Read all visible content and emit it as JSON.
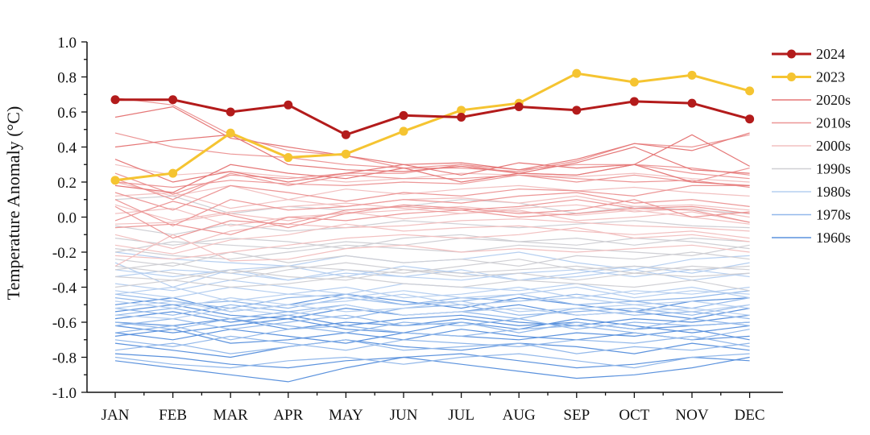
{
  "chart_data": {
    "type": "line",
    "title": "",
    "xlabel": "",
    "ylabel": "Temperature Anomaly (°C)",
    "ylim": [
      -1.0,
      1.0
    ],
    "yticks": [
      "1.0",
      "0.8",
      "0.6",
      "0.4",
      "0.2",
      "0.0",
      "-0.2",
      "-0.4",
      "-0.6",
      "-0.8",
      "-1.0"
    ],
    "categories": [
      "JAN",
      "FEB",
      "MAR",
      "APR",
      "MAY",
      "JUN",
      "JUL",
      "AUG",
      "SEP",
      "OCT",
      "NOV",
      "DEC"
    ],
    "grid": false,
    "legend_position": "right",
    "series": [
      {
        "name": "2024",
        "color": "#b31b1b",
        "highlight": true,
        "values": [
          0.67,
          0.67,
          0.6,
          0.64,
          0.47,
          0.58,
          0.57,
          0.63,
          0.61,
          0.66,
          0.65,
          0.56
        ]
      },
      {
        "name": "2023",
        "color": "#f5c431",
        "highlight": true,
        "values": [
          0.21,
          0.25,
          0.48,
          0.34,
          0.36,
          0.49,
          0.61,
          0.65,
          0.82,
          0.77,
          0.81,
          0.72
        ]
      }
    ],
    "decades": [
      {
        "name": "2020s",
        "color": "#e57777",
        "lines": [
          [
            0.57,
            0.63,
            0.45,
            0.4,
            0.35,
            0.3,
            0.31,
            0.27,
            0.33,
            0.42,
            0.38,
            0.48
          ],
          [
            0.4,
            0.44,
            0.47,
            0.3,
            0.27,
            0.26,
            0.29,
            0.25,
            0.31,
            0.4,
            0.27,
            0.25
          ],
          [
            0.33,
            0.2,
            0.26,
            0.2,
            0.25,
            0.3,
            0.24,
            0.31,
            0.28,
            0.3,
            0.47,
            0.29
          ],
          [
            0.18,
            0.14,
            0.3,
            0.25,
            0.22,
            0.28,
            0.2,
            0.25,
            0.24,
            0.3,
            0.2,
            0.18
          ]
        ]
      },
      {
        "name": "2010s",
        "color": "#ec9696",
        "lines": [
          [
            0.68,
            0.64,
            0.47,
            0.38,
            0.35,
            0.28,
            0.28,
            0.26,
            0.32,
            0.42,
            0.4,
            0.47
          ],
          [
            0.48,
            0.4,
            0.36,
            0.34,
            0.3,
            0.28,
            0.3,
            0.25,
            0.24,
            0.3,
            0.28,
            0.24
          ],
          [
            0.25,
            0.13,
            0.24,
            0.22,
            0.25,
            0.25,
            0.3,
            0.27,
            0.3,
            0.3,
            0.25,
            0.22
          ],
          [
            0.22,
            0.1,
            0.25,
            0.18,
            0.24,
            0.22,
            0.22,
            0.24,
            0.2,
            0.24,
            0.2,
            0.28
          ],
          [
            0.2,
            0.17,
            0.21,
            0.19,
            0.18,
            0.2,
            0.19,
            0.24,
            0.22,
            0.2,
            0.21,
            0.17
          ],
          [
            0.14,
            0.04,
            0.18,
            0.14,
            0.09,
            0.14,
            0.12,
            0.16,
            0.15,
            0.12,
            0.18,
            0.18
          ],
          [
            0.1,
            -0.05,
            0.1,
            0.04,
            0.06,
            0.1,
            0.08,
            0.12,
            0.14,
            0.08,
            0.1,
            0.06
          ],
          [
            0.06,
            -0.12,
            -0.02,
            -0.04,
            0.04,
            0.06,
            0.04,
            0.06,
            0.1,
            0.05,
            0.06,
            0.02
          ],
          [
            -0.02,
            0.09,
            0.01,
            -0.06,
            0.02,
            0.07,
            0.05,
            0.02,
            0.04,
            0.1,
            0.0,
            0.03
          ],
          [
            -0.06,
            -0.04,
            -0.1,
            0.0,
            -0.02,
            0.02,
            0.04,
            0.0,
            0.02,
            0.05,
            0.04,
            -0.03
          ]
        ]
      },
      {
        "name": "2000s",
        "color": "#f2c0c0",
        "lines": [
          [
            0.3,
            0.24,
            0.26,
            0.23,
            0.2,
            0.22,
            0.25,
            0.24,
            0.23,
            0.25,
            0.22,
            0.2
          ],
          [
            0.2,
            0.12,
            0.18,
            0.1,
            0.16,
            0.13,
            0.16,
            0.18,
            0.15,
            0.17,
            0.14,
            0.12
          ],
          [
            0.12,
            0.14,
            0.05,
            0.1,
            0.06,
            0.1,
            0.11,
            0.08,
            0.12,
            0.06,
            0.07,
            0.04
          ],
          [
            0.07,
            -0.02,
            0.03,
            0.06,
            0.08,
            0.05,
            0.02,
            0.05,
            0.07,
            0.03,
            0.05,
            0.0
          ],
          [
            0.02,
            0.05,
            -0.05,
            0.0,
            0.02,
            0.04,
            0.06,
            0.03,
            0.01,
            0.04,
            0.0,
            -0.04
          ],
          [
            -0.04,
            -0.03,
            0.02,
            -0.02,
            0.03,
            -0.01,
            0.02,
            0.04,
            -0.02,
            0.0,
            0.03,
            -0.03
          ],
          [
            -0.1,
            -0.18,
            -0.08,
            -0.04,
            -0.06,
            -0.05,
            -0.02,
            -0.01,
            -0.03,
            -0.05,
            -0.06,
            -0.08
          ],
          [
            -0.16,
            -0.21,
            -0.13,
            -0.1,
            -0.04,
            -0.08,
            -0.06,
            -0.05,
            -0.08,
            -0.1,
            -0.08,
            -0.12
          ],
          [
            -0.22,
            -0.24,
            -0.2,
            -0.16,
            -0.12,
            -0.1,
            -0.12,
            -0.1,
            -0.06,
            -0.12,
            -0.1,
            -0.14
          ],
          [
            -0.28,
            -0.1,
            -0.25,
            -0.24,
            -0.18,
            -0.16,
            -0.2,
            -0.18,
            -0.2,
            -0.18,
            -0.16,
            -0.2
          ]
        ]
      },
      {
        "name": "1990s",
        "color": "#cfcfd4",
        "lines": [
          [
            0.1,
            0.12,
            0.02,
            0.06,
            0.04,
            0.06,
            0.1,
            0.08,
            0.02,
            0.06,
            0.04,
            0.02
          ],
          [
            -0.05,
            -0.1,
            -0.04,
            -0.08,
            -0.06,
            -0.02,
            -0.04,
            -0.06,
            -0.04,
            -0.02,
            -0.05,
            -0.06
          ],
          [
            -0.12,
            -0.16,
            -0.12,
            -0.14,
            -0.18,
            -0.12,
            -0.1,
            -0.14,
            -0.12,
            -0.16,
            -0.12,
            -0.14
          ],
          [
            -0.18,
            -0.22,
            -0.24,
            -0.2,
            -0.16,
            -0.18,
            -0.2,
            -0.16,
            -0.18,
            -0.2,
            -0.22,
            -0.16
          ],
          [
            -0.24,
            -0.28,
            -0.2,
            -0.26,
            -0.22,
            -0.26,
            -0.24,
            -0.28,
            -0.22,
            -0.24,
            -0.2,
            -0.24
          ],
          [
            -0.3,
            -0.26,
            -0.32,
            -0.28,
            -0.3,
            -0.32,
            -0.28,
            -0.24,
            -0.3,
            -0.28,
            -0.3,
            -0.28
          ],
          [
            -0.34,
            -0.36,
            -0.3,
            -0.34,
            -0.36,
            -0.3,
            -0.34,
            -0.32,
            -0.36,
            -0.32,
            -0.34,
            -0.32
          ],
          [
            -0.4,
            -0.36,
            -0.4,
            -0.38,
            -0.34,
            -0.38,
            -0.4,
            -0.36,
            -0.38,
            -0.4,
            -0.36,
            -0.42
          ],
          [
            -0.2,
            -0.14,
            -0.16,
            -0.18,
            -0.14,
            -0.16,
            -0.12,
            -0.14,
            -0.16,
            -0.12,
            -0.14,
            -0.18
          ],
          [
            -0.28,
            -0.32,
            -0.36,
            -0.3,
            -0.26,
            -0.3,
            -0.32,
            -0.3,
            -0.28,
            -0.32,
            -0.28,
            -0.3
          ]
        ]
      },
      {
        "name": "1980s",
        "color": "#b6cff0",
        "lines": [
          [
            -0.2,
            -0.24,
            -0.26,
            -0.28,
            -0.22,
            -0.26,
            -0.24,
            -0.2,
            -0.26,
            -0.3,
            -0.24,
            -0.22
          ],
          [
            -0.3,
            -0.34,
            -0.3,
            -0.36,
            -0.32,
            -0.34,
            -0.3,
            -0.36,
            -0.34,
            -0.3,
            -0.36,
            -0.32
          ],
          [
            -0.38,
            -0.42,
            -0.36,
            -0.4,
            -0.44,
            -0.38,
            -0.4,
            -0.42,
            -0.38,
            -0.44,
            -0.4,
            -0.46
          ],
          [
            -0.44,
            -0.4,
            -0.48,
            -0.44,
            -0.4,
            -0.46,
            -0.44,
            -0.4,
            -0.46,
            -0.42,
            -0.44,
            -0.4
          ],
          [
            -0.48,
            -0.52,
            -0.46,
            -0.5,
            -0.48,
            -0.44,
            -0.5,
            -0.48,
            -0.46,
            -0.5,
            -0.48,
            -0.52
          ],
          [
            -0.52,
            -0.48,
            -0.54,
            -0.5,
            -0.54,
            -0.52,
            -0.48,
            -0.54,
            -0.52,
            -0.5,
            -0.54,
            -0.5
          ],
          [
            -0.34,
            -0.3,
            -0.32,
            -0.36,
            -0.3,
            -0.34,
            -0.36,
            -0.32,
            -0.3,
            -0.34,
            -0.3,
            -0.34
          ],
          [
            -0.26,
            -0.4,
            -0.3,
            -0.28,
            -0.34,
            -0.28,
            -0.32,
            -0.36,
            -0.32,
            -0.28,
            -0.32,
            -0.26
          ],
          [
            -0.42,
            -0.46,
            -0.4,
            -0.44,
            -0.46,
            -0.42,
            -0.46,
            -0.44,
            -0.4,
            -0.46,
            -0.42,
            -0.44
          ],
          [
            -0.56,
            -0.58,
            -0.52,
            -0.56,
            -0.5,
            -0.56,
            -0.54,
            -0.52,
            -0.56,
            -0.54,
            -0.52,
            -0.56
          ]
        ]
      },
      {
        "name": "1970s",
        "color": "#92b8ea",
        "lines": [
          [
            -0.46,
            -0.5,
            -0.48,
            -0.52,
            -0.46,
            -0.5,
            -0.48,
            -0.44,
            -0.5,
            -0.48,
            -0.52,
            -0.46
          ],
          [
            -0.56,
            -0.52,
            -0.58,
            -0.54,
            -0.5,
            -0.56,
            -0.54,
            -0.58,
            -0.52,
            -0.56,
            -0.54,
            -0.58
          ],
          [
            -0.6,
            -0.64,
            -0.58,
            -0.62,
            -0.66,
            -0.6,
            -0.62,
            -0.58,
            -0.64,
            -0.6,
            -0.62,
            -0.6
          ],
          [
            -0.66,
            -0.62,
            -0.7,
            -0.64,
            -0.62,
            -0.66,
            -0.68,
            -0.64,
            -0.62,
            -0.66,
            -0.7,
            -0.64
          ],
          [
            -0.7,
            -0.74,
            -0.68,
            -0.72,
            -0.76,
            -0.7,
            -0.72,
            -0.74,
            -0.7,
            -0.72,
            -0.68,
            -0.74
          ],
          [
            -0.52,
            -0.56,
            -0.5,
            -0.54,
            -0.58,
            -0.52,
            -0.5,
            -0.56,
            -0.54,
            -0.52,
            -0.56,
            -0.5
          ],
          [
            -0.62,
            -0.58,
            -0.64,
            -0.6,
            -0.56,
            -0.62,
            -0.6,
            -0.66,
            -0.6,
            -0.64,
            -0.58,
            -0.62
          ],
          [
            -0.76,
            -0.72,
            -0.78,
            -0.74,
            -0.7,
            -0.76,
            -0.74,
            -0.72,
            -0.78,
            -0.74,
            -0.76,
            -0.72
          ],
          [
            -0.8,
            -0.84,
            -0.86,
            -0.82,
            -0.8,
            -0.84,
            -0.8,
            -0.78,
            -0.82,
            -0.86,
            -0.8,
            -0.78
          ],
          [
            -0.44,
            -0.48,
            -0.52,
            -0.46,
            -0.44,
            -0.5,
            -0.46,
            -0.48,
            -0.44,
            -0.48,
            -0.46,
            -0.42
          ]
        ]
      },
      {
        "name": "1960s",
        "color": "#5b92dd",
        "lines": [
          [
            -0.54,
            -0.5,
            -0.56,
            -0.58,
            -0.52,
            -0.56,
            -0.54,
            -0.5,
            -0.56,
            -0.54,
            -0.58,
            -0.52
          ],
          [
            -0.6,
            -0.62,
            -0.58,
            -0.64,
            -0.6,
            -0.62,
            -0.58,
            -0.62,
            -0.6,
            -0.64,
            -0.62,
            -0.6
          ],
          [
            -0.66,
            -0.7,
            -0.64,
            -0.68,
            -0.72,
            -0.66,
            -0.68,
            -0.7,
            -0.66,
            -0.68,
            -0.64,
            -0.7
          ],
          [
            -0.72,
            -0.76,
            -0.8,
            -0.74,
            -0.7,
            -0.74,
            -0.76,
            -0.72,
            -0.74,
            -0.78,
            -0.72,
            -0.76
          ],
          [
            -0.78,
            -0.8,
            -0.84,
            -0.86,
            -0.82,
            -0.8,
            -0.78,
            -0.82,
            -0.86,
            -0.84,
            -0.8,
            -0.82
          ],
          [
            -0.82,
            -0.86,
            -0.9,
            -0.94,
            -0.86,
            -0.8,
            -0.84,
            -0.88,
            -0.92,
            -0.9,
            -0.86,
            -0.8
          ],
          [
            -0.5,
            -0.46,
            -0.54,
            -0.5,
            -0.44,
            -0.48,
            -0.52,
            -0.46,
            -0.5,
            -0.54,
            -0.48,
            -0.46
          ],
          [
            -0.58,
            -0.54,
            -0.6,
            -0.56,
            -0.62,
            -0.58,
            -0.56,
            -0.6,
            -0.62,
            -0.58,
            -0.6,
            -0.56
          ],
          [
            -0.68,
            -0.64,
            -0.72,
            -0.7,
            -0.66,
            -0.7,
            -0.64,
            -0.68,
            -0.7,
            -0.66,
            -0.7,
            -0.68
          ],
          [
            -0.62,
            -0.66,
            -0.62,
            -0.58,
            -0.64,
            -0.66,
            -0.6,
            -0.64,
            -0.58,
            -0.62,
            -0.66,
            -0.62
          ]
        ]
      }
    ],
    "legend": [
      "2024",
      "2023",
      "2020s",
      "2010s",
      "2000s",
      "1990s",
      "1980s",
      "1970s",
      "1960s"
    ]
  }
}
